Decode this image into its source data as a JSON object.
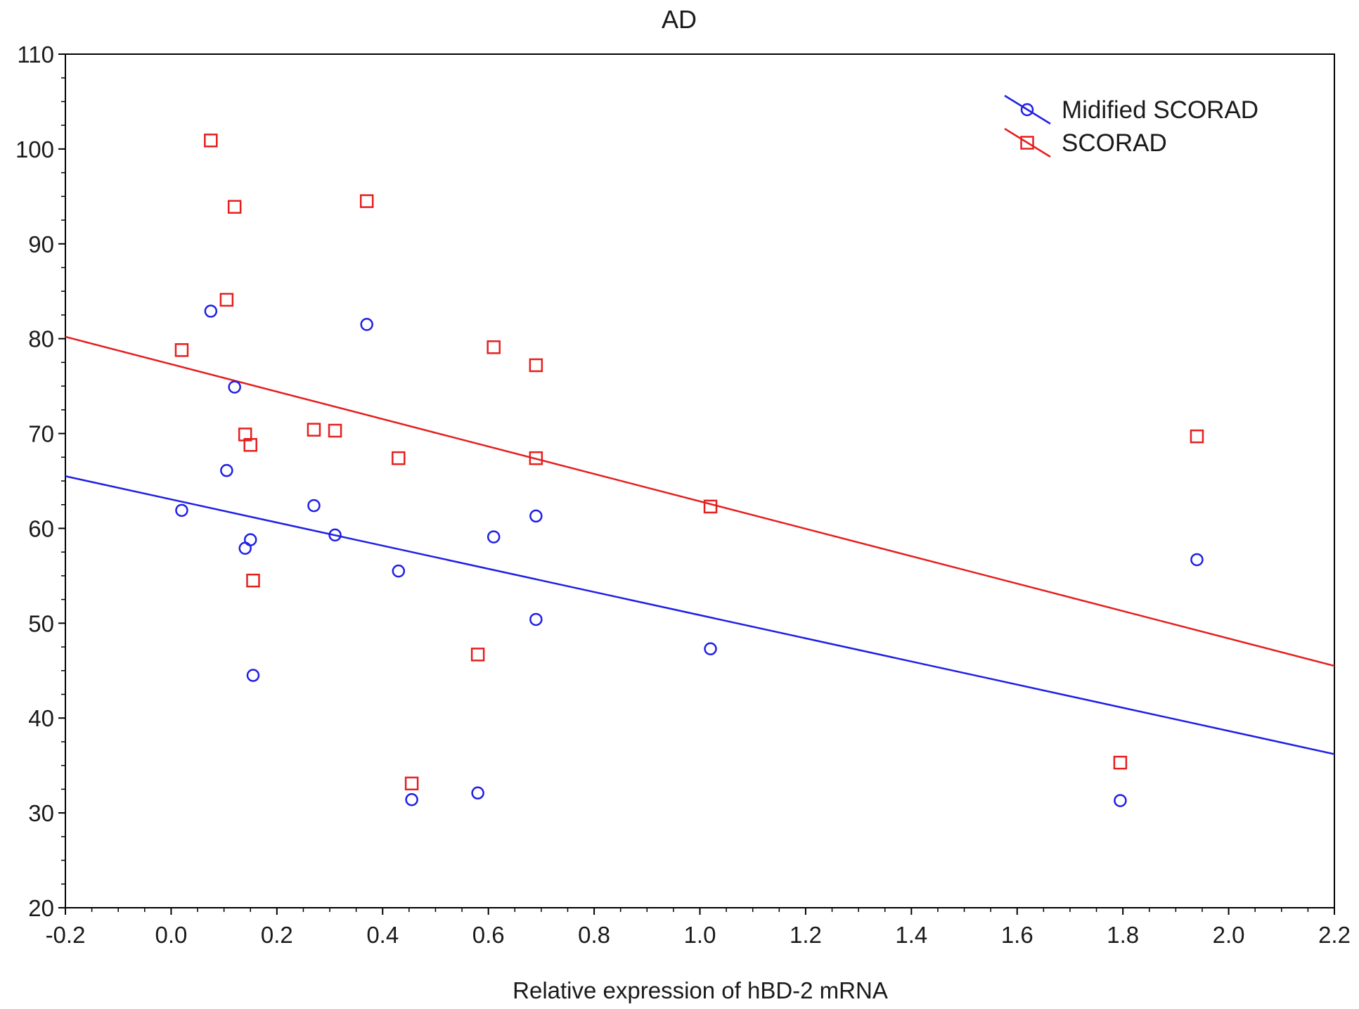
{
  "chart_data": {
    "type": "scatter",
    "title": "AD",
    "xlabel": "Relative expression of hBD-2 mRNA",
    "ylabel": "",
    "xlim": [
      -0.2,
      2.2
    ],
    "ylim": [
      20,
      110
    ],
    "xticks": [
      "-0.2",
      "0.0",
      "0.2",
      "0.4",
      "0.6",
      "0.8",
      "1.0",
      "1.2",
      "1.4",
      "1.6",
      "1.8",
      "2.0",
      "2.2"
    ],
    "yticks": [
      "20",
      "30",
      "40",
      "50",
      "60",
      "70",
      "80",
      "90",
      "100",
      "110"
    ],
    "grid": false,
    "legend_position": "top-right",
    "series": [
      {
        "name": "Midified SCORAD",
        "marker": "circle",
        "color": "#1f1fe6",
        "x": [
          0.02,
          0.075,
          0.12,
          0.105,
          0.14,
          0.15,
          0.155,
          0.27,
          0.31,
          0.37,
          0.43,
          0.455,
          0.58,
          0.61,
          0.69,
          0.69,
          1.02,
          1.795,
          1.94
        ],
        "y": [
          61.9,
          82.9,
          74.9,
          66.1,
          57.9,
          58.8,
          44.5,
          62.4,
          59.3,
          81.5,
          55.5,
          31.4,
          32.1,
          59.1,
          61.3,
          50.4,
          47.3,
          31.3,
          56.7
        ],
        "fit": {
          "x": [
            -0.2,
            2.2
          ],
          "y": [
            65.5,
            36.2
          ]
        }
      },
      {
        "name": "SCORAD",
        "marker": "square",
        "color": "#e51f1f",
        "x": [
          0.02,
          0.075,
          0.12,
          0.105,
          0.14,
          0.15,
          0.155,
          0.27,
          0.31,
          0.37,
          0.43,
          0.455,
          0.58,
          0.61,
          0.69,
          0.69,
          1.02,
          1.795,
          1.94
        ],
        "y": [
          78.8,
          100.9,
          93.9,
          84.1,
          69.9,
          68.8,
          54.5,
          70.4,
          70.3,
          94.5,
          67.4,
          33.1,
          46.7,
          79.1,
          77.2,
          67.4,
          62.3,
          35.3,
          69.7
        ],
        "fit": {
          "x": [
            -0.2,
            2.2
          ],
          "y": [
            80.2,
            45.5
          ]
        }
      }
    ]
  }
}
